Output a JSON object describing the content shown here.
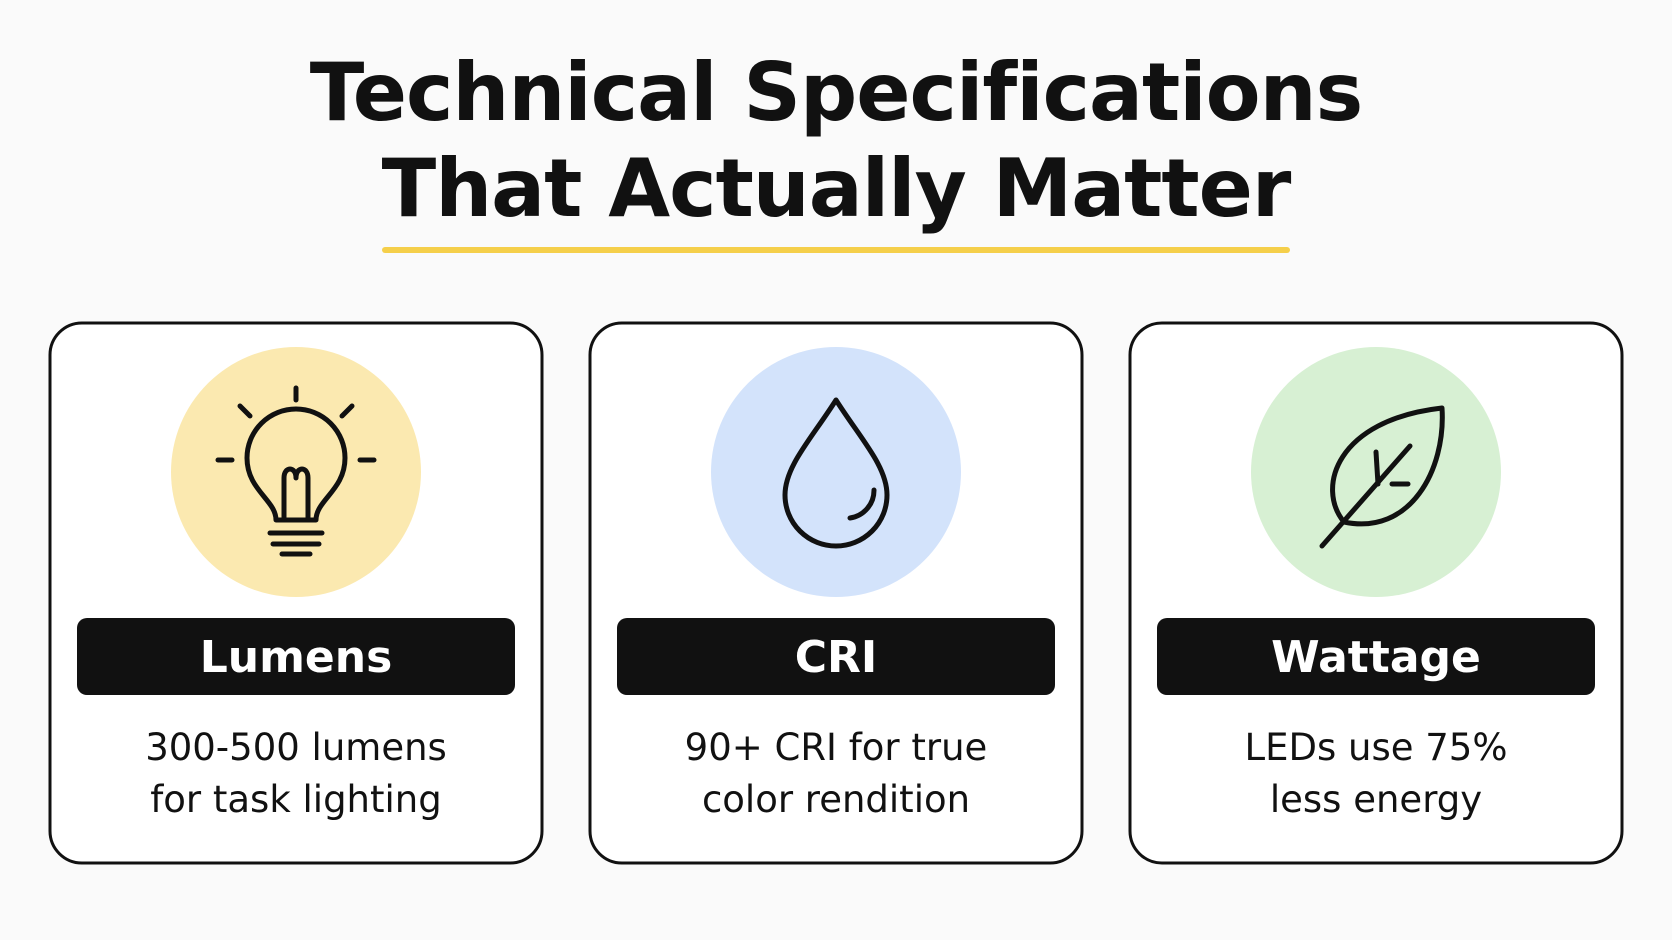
{
  "header": {
    "title_lines": [
      "Technical Specifications",
      "That Actually Matter"
    ]
  },
  "cards": [
    {
      "label": "Lumens",
      "description_lines": [
        "300-500 lumens",
        "for task lighting"
      ]
    },
    {
      "label": "CRI",
      "description_lines": [
        "90+ CRI for true",
        "color rendition"
      ]
    },
    {
      "label": "Wattage",
      "description_lines": [
        "LEDs use 75%",
        "less energy"
      ]
    }
  ]
}
